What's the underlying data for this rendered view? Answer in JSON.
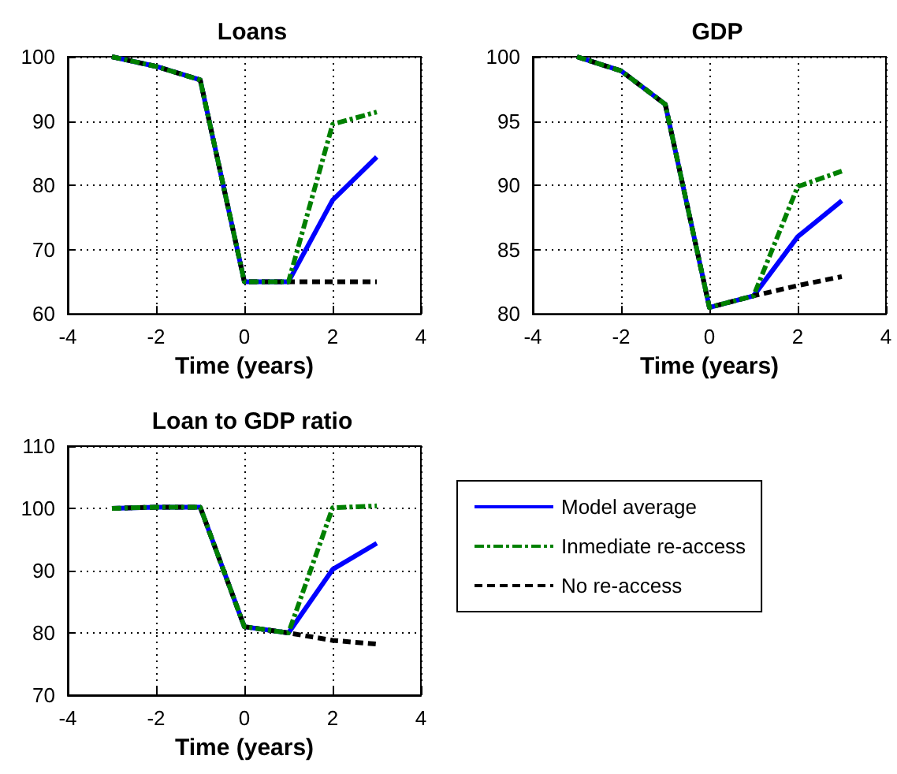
{
  "chart_data": [
    {
      "type": "line",
      "title": "Loans",
      "xlabel": "Time (years)",
      "xlim": [
        -4,
        4
      ],
      "xticks": [
        -4,
        -2,
        0,
        2,
        4
      ],
      "ylim": [
        60,
        100
      ],
      "yticks": [
        60,
        70,
        80,
        90,
        100
      ],
      "grid": true,
      "legend": false,
      "marker": "none",
      "x": [
        -3,
        -2,
        -1,
        0,
        1,
        2,
        3
      ],
      "series": [
        {
          "color": "#0000ff",
          "line_style": "solid",
          "values": [
            100,
            98.5,
            96.4,
            65,
            65,
            77.7,
            84.4
          ]
        },
        {
          "color": "#008000",
          "line_style": "dashdot",
          "values": [
            100,
            98.5,
            96.4,
            65,
            65,
            89.5,
            91.4
          ]
        },
        {
          "color": "#000000",
          "line_style": "dashed",
          "values": [
            100,
            98.5,
            96.4,
            65,
            65,
            65,
            65
          ]
        }
      ]
    },
    {
      "type": "line",
      "title": "GDP",
      "xlabel": "Time (years)",
      "xlim": [
        -4,
        4
      ],
      "xticks": [
        -4,
        -2,
        0,
        2,
        4
      ],
      "ylim": [
        80,
        100
      ],
      "yticks": [
        80,
        85,
        90,
        95,
        100
      ],
      "grid": true,
      "legend": false,
      "marker": "none",
      "x": [
        -3,
        -2,
        -1,
        0,
        1,
        2,
        3
      ],
      "series": [
        {
          "color": "#0000ff",
          "line_style": "solid",
          "values": [
            100,
            98.9,
            96.3,
            80.5,
            81.4,
            86.0,
            88.8
          ]
        },
        {
          "color": "#008000",
          "line_style": "dashdot",
          "values": [
            100,
            98.9,
            96.3,
            80.5,
            81.4,
            89.9,
            91.1
          ]
        },
        {
          "color": "#000000",
          "line_style": "dashed",
          "values": [
            100,
            98.9,
            96.3,
            80.5,
            81.4,
            82.2,
            82.9
          ]
        }
      ]
    },
    {
      "type": "line",
      "title": "Loan to GDP ratio",
      "xlabel": "Time (years)",
      "xlim": [
        -4,
        4
      ],
      "xticks": [
        -4,
        -2,
        0,
        2,
        4
      ],
      "ylim": [
        70,
        110
      ],
      "yticks": [
        70,
        80,
        90,
        100,
        110
      ],
      "grid": true,
      "legend": "right",
      "marker": "none",
      "x": [
        -3,
        -2,
        -1,
        0,
        1,
        2,
        3
      ],
      "series": [
        {
          "name": "Model average",
          "color": "#0000ff",
          "line_style": "solid",
          "values": [
            100,
            100.2,
            100.2,
            81,
            80,
            90.2,
            94.4
          ]
        },
        {
          "name": "Inmediate re-access",
          "color": "#008000",
          "line_style": "dashdot",
          "values": [
            100,
            100.2,
            100.2,
            81,
            80,
            100.1,
            100.4
          ]
        },
        {
          "name": "No re-access",
          "color": "#000000",
          "line_style": "dashed",
          "values": [
            100,
            100.2,
            100.2,
            81,
            80,
            78.8,
            78.2
          ]
        }
      ]
    }
  ]
}
